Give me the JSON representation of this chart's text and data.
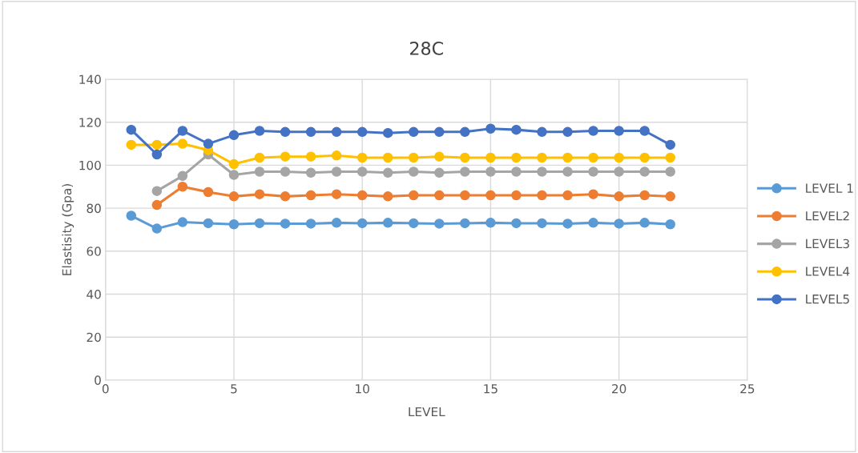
{
  "chart_data": {
    "type": "line",
    "title": "28C",
    "xlabel": "LEVEL",
    "ylabel": "Elastisity (Gpa)",
    "x": [
      1,
      2,
      3,
      4,
      5,
      6,
      7,
      8,
      9,
      10,
      11,
      12,
      13,
      14,
      15,
      16,
      17,
      18,
      19,
      20,
      21,
      22
    ],
    "xlim": [
      0,
      25
    ],
    "xticks": [
      0,
      5,
      10,
      15,
      20,
      25
    ],
    "ylim": [
      0,
      140
    ],
    "yticks": [
      0,
      20,
      40,
      60,
      80,
      100,
      120,
      140
    ],
    "grid": true,
    "legend": "right",
    "marker": "circle",
    "line_style": "solid",
    "series": [
      {
        "name": "LEVEL 1",
        "color": "#5b9bd5",
        "values": [
          76.5,
          70.5,
          73.5,
          73,
          72.5,
          73,
          72.8,
          72.8,
          73.2,
          73,
          73.2,
          73,
          72.8,
          73,
          73.2,
          73,
          73,
          72.8,
          73.2,
          72.8,
          73.2,
          72.5
        ]
      },
      {
        "name": "LEVEL2",
        "color": "#ed7d31",
        "values": [
          null,
          81.5,
          90,
          87.5,
          85.5,
          86.5,
          85.5,
          86,
          86.5,
          86,
          85.5,
          86,
          86,
          86,
          86,
          86,
          86,
          86,
          86.5,
          85.5,
          86,
          85.5
        ]
      },
      {
        "name": "LEVEL3",
        "color": "#a5a5a5",
        "values": [
          null,
          88,
          95,
          105,
          95.5,
          97,
          97,
          96.5,
          97,
          97,
          96.5,
          97,
          96.5,
          97,
          97,
          97,
          97,
          97,
          97,
          97,
          97,
          97
        ]
      },
      {
        "name": "LEVEL4",
        "color": "#ffc000",
        "values": [
          109.5,
          109.5,
          110,
          107,
          100.5,
          103.5,
          104,
          104,
          104.5,
          103.5,
          103.5,
          103.5,
          104,
          103.5,
          103.5,
          103.5,
          103.5,
          103.5,
          103.5,
          103.5,
          103.5,
          103.5
        ]
      },
      {
        "name": "LEVEL5",
        "color": "#4472c4",
        "values": [
          116.5,
          105,
          116,
          110,
          114,
          116,
          115.5,
          115.5,
          115.5,
          115.5,
          115,
          115.5,
          115.5,
          115.5,
          117,
          116.5,
          115.5,
          115.5,
          116,
          116,
          116,
          109.5
        ]
      }
    ]
  }
}
